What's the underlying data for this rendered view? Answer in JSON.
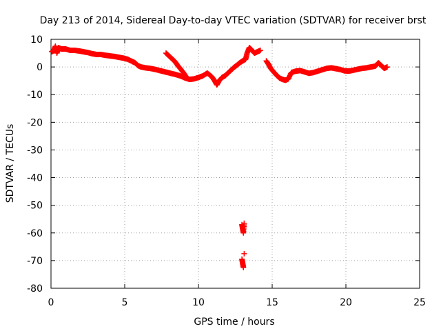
{
  "chart_data": {
    "type": "scatter",
    "title": "Day 213 of 2014, Sidereal Day-to-day VTEC variation (SDTVAR) for receiver brst",
    "xlabel": "GPS time / hours",
    "ylabel": "SDTVAR / TECUs",
    "xlim": [
      0,
      25
    ],
    "ylim": [
      -80,
      10
    ],
    "xticks": [
      0,
      5,
      10,
      15,
      20,
      25
    ],
    "yticks": [
      10,
      0,
      -10,
      -20,
      -30,
      -40,
      -50,
      -60,
      -70,
      -80
    ],
    "grid": true,
    "marker": "plus",
    "series": [
      {
        "name": "SDTVAR",
        "color": "#ff0000",
        "points": [
          [
            0.05,
            5.5
          ],
          [
            0.2,
            6.0
          ],
          [
            0.3,
            7.5
          ],
          [
            0.4,
            5.0
          ],
          [
            0.5,
            7.0
          ],
          [
            0.7,
            6.5
          ],
          [
            1.0,
            6.5
          ],
          [
            1.3,
            6.0
          ],
          [
            1.6,
            6.0
          ],
          [
            1.9,
            5.8
          ],
          [
            2.2,
            5.5
          ],
          [
            2.5,
            5.2
          ],
          [
            2.8,
            4.8
          ],
          [
            3.1,
            4.5
          ],
          [
            3.4,
            4.5
          ],
          [
            3.7,
            4.2
          ],
          [
            4.0,
            4.0
          ],
          [
            4.3,
            3.8
          ],
          [
            4.6,
            3.5
          ],
          [
            4.9,
            3.2
          ],
          [
            5.2,
            2.8
          ],
          [
            5.5,
            2.0
          ],
          [
            5.7,
            1.5
          ],
          [
            5.9,
            0.5
          ],
          [
            6.1,
            0.0
          ],
          [
            6.4,
            -0.3
          ],
          [
            6.7,
            -0.5
          ],
          [
            7.0,
            -0.8
          ],
          [
            7.3,
            -1.2
          ],
          [
            7.6,
            -1.6
          ],
          [
            7.9,
            -2.0
          ],
          [
            8.2,
            -2.4
          ],
          [
            8.5,
            -2.8
          ],
          [
            8.8,
            -3.3
          ],
          [
            9.1,
            -4.0
          ],
          [
            9.4,
            -4.5
          ],
          [
            9.7,
            -4.3
          ],
          [
            10.0,
            -3.8
          ],
          [
            10.3,
            -3.2
          ],
          [
            10.6,
            -2.2
          ],
          [
            10.9,
            -3.5
          ],
          [
            11.1,
            -5.0
          ],
          [
            11.25,
            -6.5
          ],
          [
            11.4,
            -5.0
          ],
          [
            11.6,
            -3.8
          ],
          [
            11.8,
            -3.2
          ],
          [
            12.0,
            -2.2
          ],
          [
            12.2,
            -1.2
          ],
          [
            12.4,
            -0.2
          ],
          [
            12.6,
            0.6
          ],
          [
            12.8,
            1.5
          ],
          [
            13.0,
            2.2
          ],
          [
            13.2,
            2.8
          ],
          [
            13.3,
            5.0
          ],
          [
            13.45,
            7.0
          ],
          [
            13.6,
            6.2
          ],
          [
            13.8,
            5.0
          ],
          [
            14.0,
            5.5
          ],
          [
            14.2,
            6.0
          ],
          [
            7.8,
            5.0
          ],
          [
            8.0,
            4.0
          ],
          [
            8.2,
            3.0
          ],
          [
            8.4,
            2.0
          ],
          [
            8.6,
            0.5
          ],
          [
            8.8,
            -0.8
          ],
          [
            9.0,
            -2.2
          ],
          [
            9.2,
            -3.8
          ],
          [
            14.6,
            2.2
          ],
          [
            14.75,
            1.0
          ],
          [
            14.9,
            -0.5
          ],
          [
            15.1,
            -1.8
          ],
          [
            15.3,
            -3.0
          ],
          [
            15.5,
            -4.0
          ],
          [
            15.7,
            -4.5
          ],
          [
            15.9,
            -4.8
          ],
          [
            16.1,
            -4.3
          ],
          [
            16.3,
            -2.0
          ],
          [
            16.6,
            -1.5
          ],
          [
            16.9,
            -1.3
          ],
          [
            17.2,
            -1.8
          ],
          [
            17.5,
            -2.3
          ],
          [
            17.8,
            -2.0
          ],
          [
            18.1,
            -1.5
          ],
          [
            18.4,
            -1.0
          ],
          [
            18.7,
            -0.5
          ],
          [
            19.0,
            -0.3
          ],
          [
            19.3,
            -0.6
          ],
          [
            19.6,
            -0.9
          ],
          [
            19.9,
            -1.4
          ],
          [
            20.2,
            -1.5
          ],
          [
            20.5,
            -1.2
          ],
          [
            20.8,
            -0.8
          ],
          [
            21.1,
            -0.5
          ],
          [
            21.4,
            -0.3
          ],
          [
            21.7,
            0.0
          ],
          [
            22.0,
            0.3
          ],
          [
            22.2,
            1.5
          ],
          [
            22.4,
            0.5
          ],
          [
            22.6,
            -0.5
          ],
          [
            22.8,
            0.0
          ],
          [
            12.95,
            -57.0
          ],
          [
            13.0,
            -58.5
          ],
          [
            13.05,
            -60.0
          ],
          [
            13.1,
            -56.5
          ],
          [
            12.95,
            -69.5
          ],
          [
            13.0,
            -71.0
          ],
          [
            13.05,
            -72.5
          ],
          [
            13.1,
            -67.5
          ]
        ]
      }
    ]
  }
}
